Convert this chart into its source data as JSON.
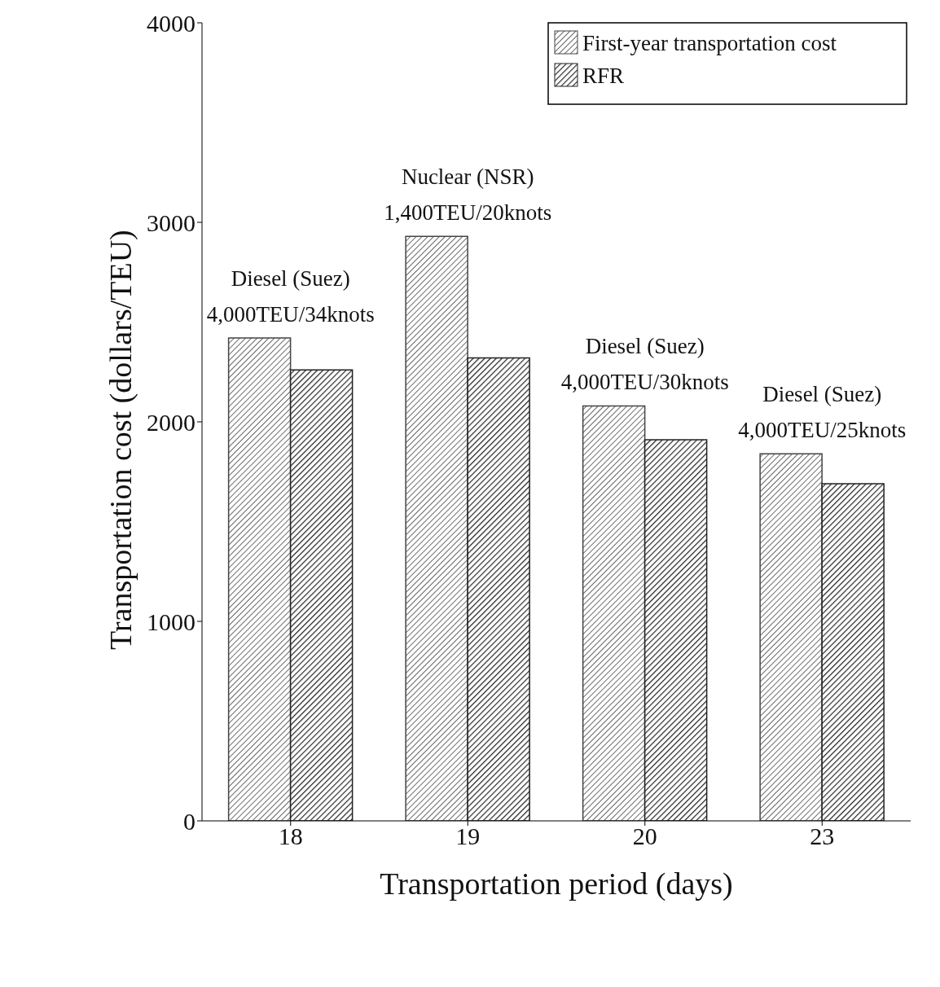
{
  "chart_data": {
    "type": "bar",
    "xlabel": "Transportation period (days)",
    "ylabel": "Transportation cost (dollars/TEU)",
    "categories": [
      "18",
      "19",
      "20",
      "23"
    ],
    "series": [
      {
        "name": "First-year transportation cost",
        "color": "#444444",
        "values": [
          2420,
          2930,
          2080,
          1840
        ]
      },
      {
        "name": "RFR",
        "color": "#222222",
        "values": [
          2260,
          2320,
          1910,
          1690
        ]
      }
    ],
    "ylim": [
      0,
      4000
    ],
    "yticks": [
      0,
      1000,
      2000,
      3000,
      4000
    ],
    "legend": "top right",
    "annotations": [
      {
        "text": "Diesel (Suez)\n4,000TEU/34knots",
        "x": "18",
        "y": 2420
      },
      {
        "text": "Nuclear (NSR)\n1,400TEU/20knots",
        "x": "19",
        "y": 2930
      },
      {
        "text": "Diesel (Suez)\n4,000TEU/30knots",
        "x": "20",
        "y": 2080
      },
      {
        "text": "Diesel (Suez)\n4,000TEU/25knots",
        "x": "23",
        "y": 1840
      }
    ]
  }
}
